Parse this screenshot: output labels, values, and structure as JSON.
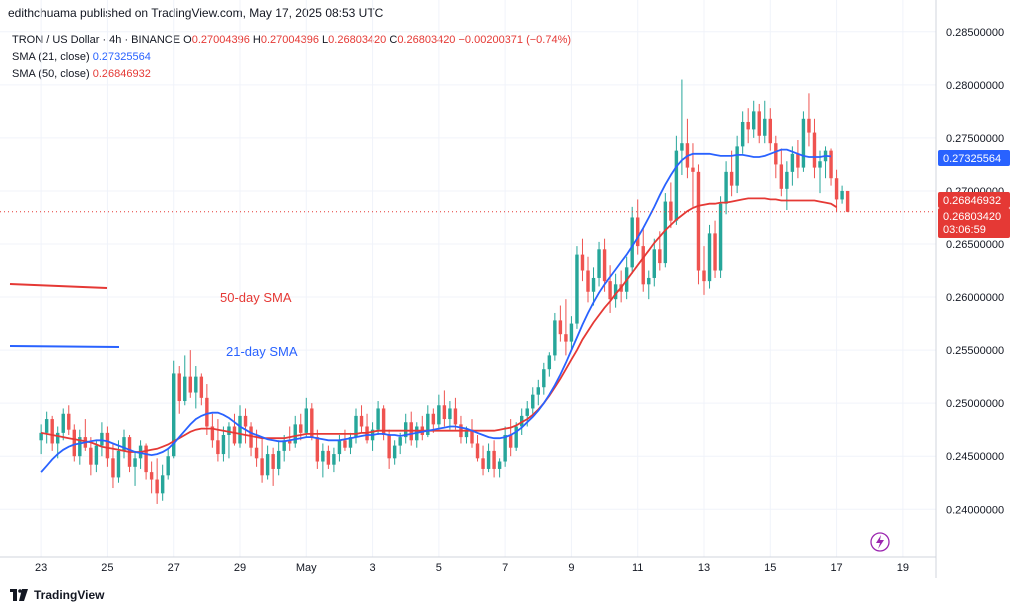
{
  "header": {
    "publisher_text": "edithchuama published on TradingView.com, May 17, 2025 08:53 UTC"
  },
  "legend": {
    "symbol": "TRON / US Dollar · 4h · BINANCE",
    "o_label": "O",
    "o_value": "0.27004396",
    "h_label": "H",
    "h_value": "0.27004396",
    "l_label": "L",
    "l_value": "0.26803420",
    "c_label": "C",
    "c_value": "0.26803420",
    "change": "−0.00200371 (−0.74%)",
    "sma21_label": "SMA (21, close)",
    "sma21_value": "0.27325564",
    "sma50_label": "SMA (50, close)",
    "sma50_value": "0.26846932"
  },
  "annotations": {
    "sma50_text": "50-day SMA",
    "sma21_text": "21-day SMA"
  },
  "price_badges": {
    "sma21": "0.27325564",
    "sma50": "0.26846932",
    "last": "0.26803420",
    "countdown": "03:06:59"
  },
  "footer": {
    "brand": "TradingView"
  },
  "colors": {
    "up": "#26a69a",
    "down": "#ef5350",
    "sma21": "#2962ff",
    "sma50": "#e53935",
    "grid": "#f0f3fa",
    "text": "#131722"
  },
  "chart_data": {
    "type": "candlestick",
    "y_ticks": [
      "0.28500000",
      "0.28000000",
      "0.27500000",
      "0.27000000",
      "0.26500000",
      "0.26000000",
      "0.25500000",
      "0.25000000",
      "0.24500000",
      "0.24000000"
    ],
    "y_tick_values": [
      0.285,
      0.28,
      0.275,
      0.27,
      0.265,
      0.26,
      0.255,
      0.25,
      0.245,
      0.24
    ],
    "ylim": [
      0.2355,
      0.2863
    ],
    "x_ticks": [
      "23",
      "25",
      "27",
      "29",
      "May",
      "3",
      "5",
      "7",
      "9",
      "11",
      "13",
      "15",
      "17",
      "19"
    ],
    "x_tick_index": [
      0,
      12,
      24,
      36,
      48,
      60,
      72,
      84,
      96,
      108,
      120,
      132,
      144,
      156
    ],
    "xlim": [
      -6,
      162
    ],
    "candles": [
      [
        0.2465,
        0.248,
        0.2452,
        0.2472
      ],
      [
        0.2472,
        0.2492,
        0.2462,
        0.2485
      ],
      [
        0.2485,
        0.2488,
        0.2455,
        0.2462
      ],
      [
        0.2462,
        0.2478,
        0.2448,
        0.2472
      ],
      [
        0.2472,
        0.2495,
        0.2465,
        0.249
      ],
      [
        0.249,
        0.2498,
        0.247,
        0.2475
      ],
      [
        0.2475,
        0.248,
        0.2445,
        0.245
      ],
      [
        0.245,
        0.2475,
        0.2442,
        0.2468
      ],
      [
        0.2468,
        0.2485,
        0.2455,
        0.2458
      ],
      [
        0.2458,
        0.2468,
        0.2432,
        0.2442
      ],
      [
        0.2442,
        0.2465,
        0.2435,
        0.246
      ],
      [
        0.246,
        0.2482,
        0.245,
        0.2472
      ],
      [
        0.2472,
        0.2478,
        0.244,
        0.2448
      ],
      [
        0.2448,
        0.2462,
        0.242,
        0.243
      ],
      [
        0.243,
        0.2465,
        0.2425,
        0.2455
      ],
      [
        0.2455,
        0.2475,
        0.2448,
        0.2468
      ],
      [
        0.2468,
        0.247,
        0.2435,
        0.244
      ],
      [
        0.244,
        0.2455,
        0.2422,
        0.2448
      ],
      [
        0.2448,
        0.2465,
        0.2438,
        0.246
      ],
      [
        0.246,
        0.2462,
        0.2428,
        0.2435
      ],
      [
        0.2435,
        0.2445,
        0.2415,
        0.2428
      ],
      [
        0.2428,
        0.2448,
        0.2405,
        0.2415
      ],
      [
        0.2415,
        0.2442,
        0.2408,
        0.2432
      ],
      [
        0.2432,
        0.2458,
        0.2428,
        0.245
      ],
      [
        0.245,
        0.254,
        0.2448,
        0.2528
      ],
      [
        0.2528,
        0.2535,
        0.249,
        0.2502
      ],
      [
        0.2502,
        0.2545,
        0.2498,
        0.2525
      ],
      [
        0.2525,
        0.255,
        0.2505,
        0.251
      ],
      [
        0.251,
        0.2535,
        0.2495,
        0.2525
      ],
      [
        0.2525,
        0.2528,
        0.2498,
        0.2505
      ],
      [
        0.2505,
        0.2518,
        0.247,
        0.2478
      ],
      [
        0.2478,
        0.249,
        0.2458,
        0.2465
      ],
      [
        0.2465,
        0.2485,
        0.2445,
        0.2452
      ],
      [
        0.2452,
        0.2478,
        0.2445,
        0.247
      ],
      [
        0.247,
        0.2482,
        0.2448,
        0.2478
      ],
      [
        0.2478,
        0.249,
        0.246,
        0.2462
      ],
      [
        0.2462,
        0.2498,
        0.2458,
        0.2488
      ],
      [
        0.2488,
        0.2495,
        0.2462,
        0.2478
      ],
      [
        0.2478,
        0.2482,
        0.245,
        0.2458
      ],
      [
        0.2458,
        0.2475,
        0.244,
        0.2448
      ],
      [
        0.2448,
        0.2468,
        0.2425,
        0.2432
      ],
      [
        0.2432,
        0.246,
        0.2428,
        0.2452
      ],
      [
        0.2452,
        0.2458,
        0.2422,
        0.2438
      ],
      [
        0.2438,
        0.2465,
        0.2432,
        0.2455
      ],
      [
        0.2455,
        0.247,
        0.2445,
        0.2465
      ],
      [
        0.2465,
        0.2478,
        0.2455,
        0.2462
      ],
      [
        0.2462,
        0.2488,
        0.2458,
        0.248
      ],
      [
        0.248,
        0.249,
        0.2465,
        0.2472
      ],
      [
        0.2472,
        0.2505,
        0.2468,
        0.2495
      ],
      [
        0.2495,
        0.25,
        0.2465,
        0.2468
      ],
      [
        0.2468,
        0.2475,
        0.2438,
        0.2445
      ],
      [
        0.2445,
        0.2462,
        0.243,
        0.2455
      ],
      [
        0.2455,
        0.246,
        0.2438,
        0.2442
      ],
      [
        0.2442,
        0.2458,
        0.2435,
        0.2452
      ],
      [
        0.2452,
        0.247,
        0.2445,
        0.2465
      ],
      [
        0.2465,
        0.2475,
        0.2455,
        0.2458
      ],
      [
        0.2458,
        0.2472,
        0.2452,
        0.2468
      ],
      [
        0.2468,
        0.2495,
        0.2462,
        0.2488
      ],
      [
        0.2488,
        0.2498,
        0.2472,
        0.2478
      ],
      [
        0.2478,
        0.249,
        0.2462,
        0.2465
      ],
      [
        0.2465,
        0.2482,
        0.2455,
        0.2475
      ],
      [
        0.2475,
        0.2502,
        0.247,
        0.2495
      ],
      [
        0.2495,
        0.2498,
        0.2465,
        0.247
      ],
      [
        0.247,
        0.2475,
        0.2438,
        0.2448
      ],
      [
        0.2448,
        0.2465,
        0.2442,
        0.246
      ],
      [
        0.246,
        0.2472,
        0.2452,
        0.2468
      ],
      [
        0.2468,
        0.249,
        0.2462,
        0.2482
      ],
      [
        0.2482,
        0.2492,
        0.246,
        0.2465
      ],
      [
        0.2465,
        0.2482,
        0.2458,
        0.2478
      ],
      [
        0.2478,
        0.2488,
        0.2465,
        0.247
      ],
      [
        0.247,
        0.2498,
        0.2468,
        0.249
      ],
      [
        0.249,
        0.2495,
        0.2472,
        0.248
      ],
      [
        0.248,
        0.2508,
        0.2475,
        0.2498
      ],
      [
        0.2498,
        0.2512,
        0.2478,
        0.2485
      ],
      [
        0.2485,
        0.2502,
        0.2475,
        0.2495
      ],
      [
        0.2495,
        0.2505,
        0.2475,
        0.248
      ],
      [
        0.248,
        0.2488,
        0.2462,
        0.2468
      ],
      [
        0.2468,
        0.2478,
        0.2462,
        0.2475
      ],
      [
        0.2475,
        0.2485,
        0.2458,
        0.2462
      ],
      [
        0.2462,
        0.247,
        0.2445,
        0.2448
      ],
      [
        0.2448,
        0.246,
        0.2432,
        0.2438
      ],
      [
        0.2438,
        0.2462,
        0.2435,
        0.2455
      ],
      [
        0.2455,
        0.2465,
        0.243,
        0.2438
      ],
      [
        0.2438,
        0.2448,
        0.243,
        0.2445
      ],
      [
        0.2445,
        0.2478,
        0.244,
        0.247
      ],
      [
        0.247,
        0.2485,
        0.245,
        0.2458
      ],
      [
        0.2458,
        0.2482,
        0.2455,
        0.2478
      ],
      [
        0.2478,
        0.2495,
        0.247,
        0.2488
      ],
      [
        0.2488,
        0.2502,
        0.2478,
        0.2495
      ],
      [
        0.2495,
        0.2515,
        0.249,
        0.2508
      ],
      [
        0.2508,
        0.2522,
        0.2498,
        0.2515
      ],
      [
        0.2515,
        0.2538,
        0.2508,
        0.2532
      ],
      [
        0.2532,
        0.2548,
        0.2525,
        0.2545
      ],
      [
        0.2545,
        0.2585,
        0.254,
        0.2578
      ],
      [
        0.2578,
        0.2592,
        0.2558,
        0.2565
      ],
      [
        0.2565,
        0.2598,
        0.2545,
        0.2558
      ],
      [
        0.2558,
        0.2582,
        0.255,
        0.2575
      ],
      [
        0.2575,
        0.2648,
        0.257,
        0.264
      ],
      [
        0.264,
        0.2655,
        0.2615,
        0.2625
      ],
      [
        0.2625,
        0.2638,
        0.2595,
        0.2605
      ],
      [
        0.2605,
        0.2628,
        0.2592,
        0.2618
      ],
      [
        0.2618,
        0.2652,
        0.261,
        0.2645
      ],
      [
        0.2645,
        0.2655,
        0.2605,
        0.2615
      ],
      [
        0.2615,
        0.263,
        0.2585,
        0.2598
      ],
      [
        0.2598,
        0.2622,
        0.259,
        0.2612
      ],
      [
        0.2612,
        0.2625,
        0.2595,
        0.2605
      ],
      [
        0.2605,
        0.2638,
        0.2598,
        0.2628
      ],
      [
        0.2628,
        0.2685,
        0.2622,
        0.2675
      ],
      [
        0.2675,
        0.2692,
        0.264,
        0.2648
      ],
      [
        0.2648,
        0.2665,
        0.2605,
        0.2612
      ],
      [
        0.2612,
        0.2625,
        0.2598,
        0.2618
      ],
      [
        0.2618,
        0.2655,
        0.261,
        0.2645
      ],
      [
        0.2645,
        0.2662,
        0.2625,
        0.2632
      ],
      [
        0.2632,
        0.2698,
        0.2628,
        0.269
      ],
      [
        0.269,
        0.2708,
        0.2665,
        0.2672
      ],
      [
        0.2672,
        0.2752,
        0.2668,
        0.2738
      ],
      [
        0.2738,
        0.2805,
        0.2715,
        0.2745
      ],
      [
        0.2745,
        0.2768,
        0.2712,
        0.2722
      ],
      [
        0.2722,
        0.2745,
        0.2685,
        0.2718
      ],
      [
        0.2718,
        0.2725,
        0.2612,
        0.2625
      ],
      [
        0.2625,
        0.2648,
        0.2602,
        0.2615
      ],
      [
        0.2615,
        0.2668,
        0.2608,
        0.266
      ],
      [
        0.266,
        0.2672,
        0.2618,
        0.2625
      ],
      [
        0.2625,
        0.2695,
        0.2618,
        0.2688
      ],
      [
        0.2688,
        0.2728,
        0.2678,
        0.2718
      ],
      [
        0.2718,
        0.2738,
        0.2695,
        0.2705
      ],
      [
        0.2705,
        0.2752,
        0.2698,
        0.2742
      ],
      [
        0.2742,
        0.2775,
        0.2735,
        0.2765
      ],
      [
        0.2765,
        0.2778,
        0.2745,
        0.2758
      ],
      [
        0.2758,
        0.2785,
        0.275,
        0.2775
      ],
      [
        0.2775,
        0.2782,
        0.2745,
        0.2752
      ],
      [
        0.2752,
        0.2785,
        0.2745,
        0.2768
      ],
      [
        0.2768,
        0.2778,
        0.2738,
        0.2745
      ],
      [
        0.2745,
        0.2752,
        0.2712,
        0.2725
      ],
      [
        0.2725,
        0.274,
        0.2695,
        0.2702
      ],
      [
        0.2702,
        0.2728,
        0.2682,
        0.2718
      ],
      [
        0.2718,
        0.2742,
        0.2705,
        0.2735
      ],
      [
        0.2735,
        0.2748,
        0.2712,
        0.2722
      ],
      [
        0.2722,
        0.2775,
        0.2718,
        0.2768
      ],
      [
        0.2768,
        0.2792,
        0.2742,
        0.2755
      ],
      [
        0.2755,
        0.2768,
        0.2712,
        0.2722
      ],
      [
        0.2722,
        0.2738,
        0.2698,
        0.2728
      ],
      [
        0.2728,
        0.2742,
        0.2712,
        0.2738
      ],
      [
        0.2738,
        0.274,
        0.2705,
        0.2712
      ],
      [
        0.2712,
        0.272,
        0.268,
        0.2692
      ],
      [
        0.2692,
        0.2705,
        0.2688,
        0.27
      ],
      [
        0.27,
        0.27,
        0.268,
        0.2680342
      ]
    ],
    "sma21": [
      0.2435,
      0.2441,
      0.2447,
      0.2452,
      0.2456,
      0.2459,
      0.2461,
      0.2462,
      0.2463,
      0.2464,
      0.2465,
      0.2465,
      0.2464,
      0.2462,
      0.246,
      0.2458,
      0.2456,
      0.2454,
      0.2453,
      0.2452,
      0.2451,
      0.2452,
      0.2454,
      0.2457,
      0.2462,
      0.2468,
      0.2474,
      0.248,
      0.2485,
      0.2488,
      0.249,
      0.2491,
      0.2491,
      0.2489,
      0.2486,
      0.2482,
      0.2478,
      0.2475,
      0.2472,
      0.247,
      0.2468,
      0.2466,
      0.2465,
      0.2464,
      0.2464,
      0.2465,
      0.2466,
      0.2467,
      0.2468,
      0.2468,
      0.2467,
      0.2466,
      0.2465,
      0.2465,
      0.2465,
      0.2466,
      0.2467,
      0.2468,
      0.2469,
      0.247,
      0.247,
      0.2471,
      0.2471,
      0.247,
      0.247,
      0.2469,
      0.247,
      0.2471,
      0.2472,
      0.2473,
      0.2474,
      0.2475,
      0.2476,
      0.2477,
      0.2478,
      0.2478,
      0.2477,
      0.2476,
      0.2474,
      0.2472,
      0.247,
      0.2468,
      0.2467,
      0.2467,
      0.2468,
      0.247,
      0.2473,
      0.2477,
      0.2482,
      0.2487,
      0.2493,
      0.25,
      0.2508,
      0.2517,
      0.2527,
      0.2538,
      0.255,
      0.2562,
      0.2574,
      0.2585,
      0.2595,
      0.2604,
      0.2612,
      0.2619,
      0.2626,
      0.2633,
      0.264,
      0.2648,
      0.2656,
      0.2665,
      0.2675,
      0.2685,
      0.2696,
      0.2706,
      0.2715,
      0.2723,
      0.2729,
      0.2733,
      0.2735,
      0.2735,
      0.2735,
      0.2735,
      0.2734,
      0.2733,
      0.2733,
      0.2733,
      0.2734,
      0.2734,
      0.2733,
      0.2732,
      0.2732,
      0.2733,
      0.2735,
      0.2737,
      0.2739,
      0.2739,
      0.2737,
      0.2735,
      0.2733,
      0.2732,
      0.2732,
      0.2732,
      0.2733,
      0.27325564
    ],
    "sma50": [
      0.2472,
      0.2471,
      0.247,
      0.2469,
      0.2468,
      0.2467,
      0.2466,
      0.2465,
      0.2464,
      0.2463,
      0.2461,
      0.2459,
      0.2458,
      0.2457,
      0.2456,
      0.2455,
      0.2454,
      0.2454,
      0.2454,
      0.2455,
      0.2456,
      0.2457,
      0.2459,
      0.2461,
      0.2464,
      0.2467,
      0.247,
      0.2473,
      0.2475,
      0.2476,
      0.2476,
      0.2476,
      0.2475,
      0.2474,
      0.2473,
      0.2472,
      0.2471,
      0.247,
      0.2469,
      0.2468,
      0.2467,
      0.2467,
      0.2467,
      0.2467,
      0.2467,
      0.2468,
      0.2469,
      0.247,
      0.2471,
      0.2471,
      0.2471,
      0.2471,
      0.2471,
      0.2471,
      0.2471,
      0.2471,
      0.2471,
      0.2471,
      0.2472,
      0.2472,
      0.2473,
      0.2474,
      0.2474,
      0.2474,
      0.2474,
      0.2474,
      0.2474,
      0.2474,
      0.2474,
      0.2474,
      0.2474,
      0.2474,
      0.2474,
      0.2474,
      0.2474,
      0.2474,
      0.2474,
      0.2474,
      0.2474,
      0.2474,
      0.2474,
      0.2474,
      0.2474,
      0.2475,
      0.2476,
      0.2477,
      0.2479,
      0.2482,
      0.2485,
      0.2489,
      0.2494,
      0.25,
      0.2507,
      0.2515,
      0.2523,
      0.2532,
      0.2541,
      0.255,
      0.256,
      0.2568,
      0.2576,
      0.2583,
      0.259,
      0.2596,
      0.2603,
      0.2609,
      0.2616,
      0.2623,
      0.263,
      0.2637,
      0.2644,
      0.2651,
      0.2657,
      0.2663,
      0.2668,
      0.2673,
      0.2677,
      0.2681,
      0.2684,
      0.2686,
      0.2687,
      0.2688,
      0.2688,
      0.2689,
      0.2689,
      0.269,
      0.2691,
      0.2692,
      0.2693,
      0.2693,
      0.2693,
      0.2693,
      0.2692,
      0.2692,
      0.2691,
      0.2691,
      0.2691,
      0.2691,
      0.2691,
      0.2691,
      0.2691,
      0.269,
      0.2689,
      0.2688,
      0.26846932
    ],
    "series": [
      {
        "name": "SMA (21, close)",
        "color": "#2962ff"
      },
      {
        "name": "SMA (50, close)",
        "color": "#e53935"
      }
    ],
    "grid": true
  }
}
